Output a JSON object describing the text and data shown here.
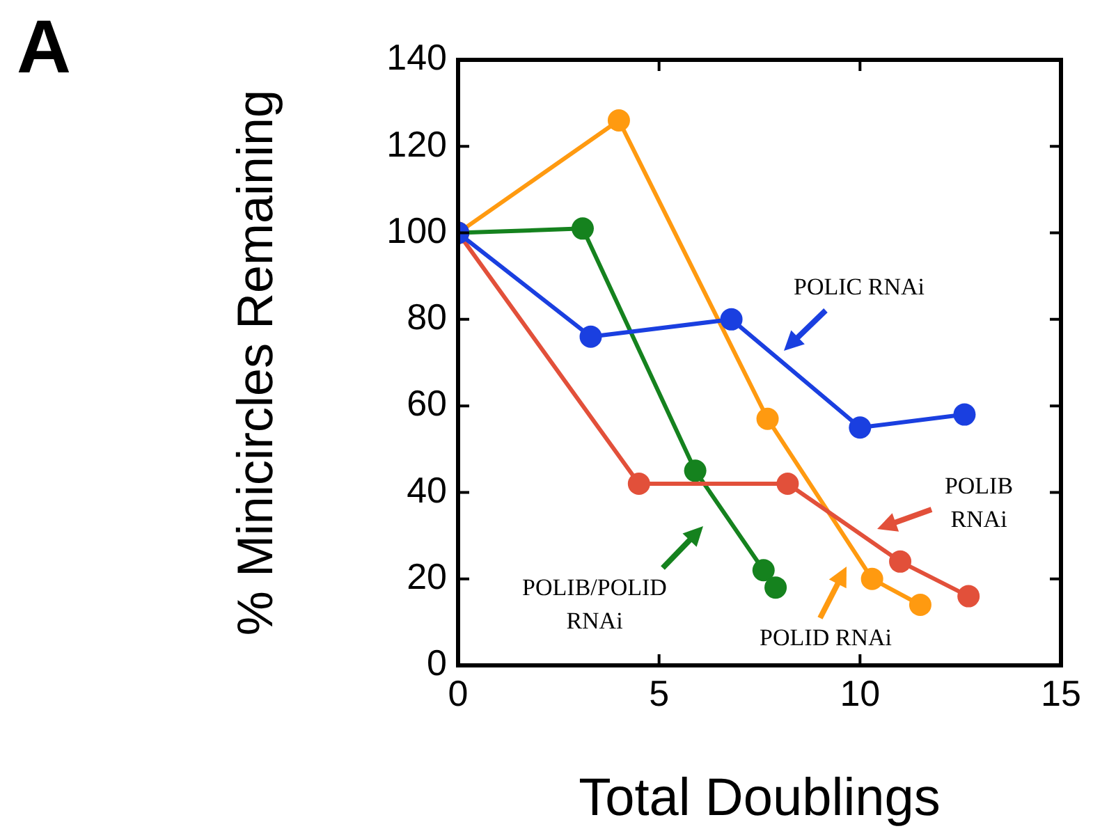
{
  "chart_data": {
    "type": "line",
    "title": "A",
    "xlabel": "Total Doublings",
    "ylabel": "% Minicircles Remaining",
    "xlim": [
      0,
      15
    ],
    "xticks": [
      0,
      5,
      10,
      15
    ],
    "ylim": [
      0,
      140
    ],
    "yticks": [
      0,
      20,
      40,
      60,
      80,
      100,
      120,
      140
    ],
    "grid": false,
    "legend": false,
    "marker": "circle",
    "line_style": "solid",
    "series": [
      {
        "x": [
          0,
          3.3,
          6.8,
          10.0,
          12.6
        ],
        "values": [
          100,
          76,
          80,
          55,
          58
        ],
        "color": "#1a3fe0"
      },
      {
        "x": [
          0,
          4.5,
          8.2,
          11.0,
          12.7
        ],
        "values": [
          100,
          42,
          42,
          24,
          16
        ],
        "color": "#e2503a"
      },
      {
        "x": [
          0,
          3.1,
          5.9,
          7.6,
          7.9
        ],
        "values": [
          100,
          101,
          45,
          22,
          18
        ],
        "color": "#15821e"
      },
      {
        "x": [
          0,
          4.0,
          7.7,
          10.3,
          11.5
        ],
        "values": [
          100,
          126,
          57,
          20,
          14
        ],
        "color": "#ff9a10"
      }
    ],
    "annotations": [
      "POLIC RNAi",
      "POLIB\nRNAi",
      "POLIB/POLID\nRNAi",
      "POLID RNAi"
    ]
  }
}
